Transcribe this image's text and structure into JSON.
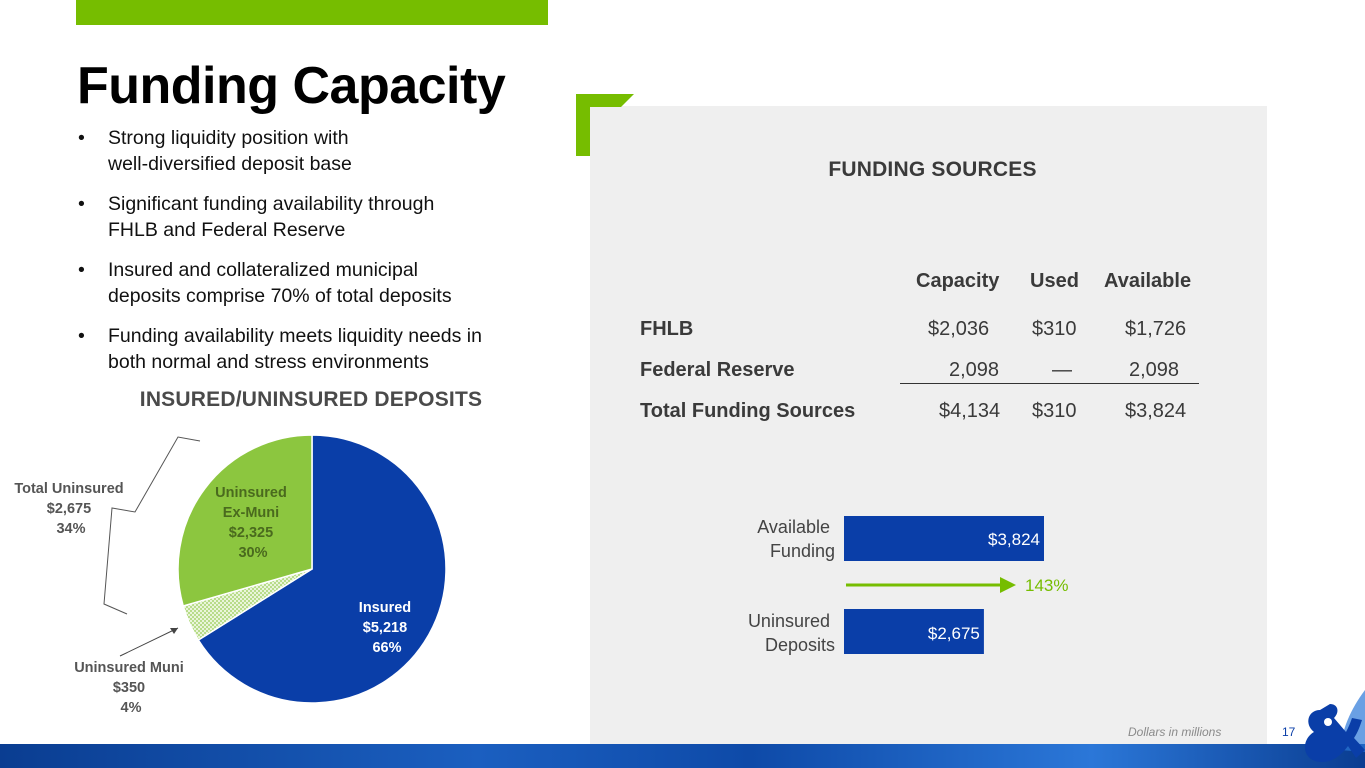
{
  "page": {
    "title": "Funding Capacity",
    "bullets": [
      "Strong liquidity position with\nwell-diversified deposit base",
      "Significant funding availability through\nFHLB and Federal Reserve",
      "Insured and collateralized municipal\ndeposits comprise 70% of total deposits",
      "Funding availability meets liquidity needs in\nboth normal and stress environments"
    ],
    "bullet_glyph": "•",
    "footnote": "Dollars in millions",
    "page_number": "17"
  },
  "colors": {
    "accent_green": "#76bd00",
    "light_green": "#8cc63f",
    "brand_blue": "#0a3ea8",
    "panel_gray": "#efefef"
  },
  "funding_table": {
    "title": "FUNDING SOURCES",
    "headers": [
      "Capacity",
      "Used",
      "Available"
    ],
    "rows": [
      {
        "label": "FHLB",
        "capacity": "$2,036",
        "used": "$310",
        "available": "$1,726"
      },
      {
        "label": "Federal Reserve",
        "capacity": "2,098",
        "used": "—",
        "available": "2,098"
      },
      {
        "label": "Total Funding Sources",
        "capacity": "$4,134",
        "used": "$310",
        "available": "$3,824"
      }
    ]
  },
  "chart_data": [
    {
      "type": "pie",
      "title": "INSURED/UNINSURED DEPOSITS",
      "slices": [
        {
          "name": "Insured",
          "value": 5218,
          "label_value": "$5,218",
          "percent": "66%",
          "color": "#0a3ea8"
        },
        {
          "name": "Uninsured Muni",
          "value": 350,
          "label_value": "$350",
          "percent": "4%",
          "color": "#d6ebb8",
          "pattern": "checker"
        },
        {
          "name": "Uninsured\nEx-Muni",
          "value": 2325,
          "label_value": "$2,325",
          "percent": "30%",
          "color": "#8cc63f"
        }
      ],
      "annotations": [
        {
          "text": "Total Uninsured",
          "value": "$2,675",
          "percent": "34%"
        }
      ]
    },
    {
      "type": "bar",
      "orientation": "horizontal",
      "categories": [
        "Available\nFunding",
        "Uninsured\nDeposits"
      ],
      "values": [
        3824,
        2675
      ],
      "data_labels": [
        "$3,824",
        "$2,675"
      ],
      "color": "#0a3ea8",
      "annotation": {
        "text": "143%",
        "color": "#76bd00"
      }
    }
  ]
}
